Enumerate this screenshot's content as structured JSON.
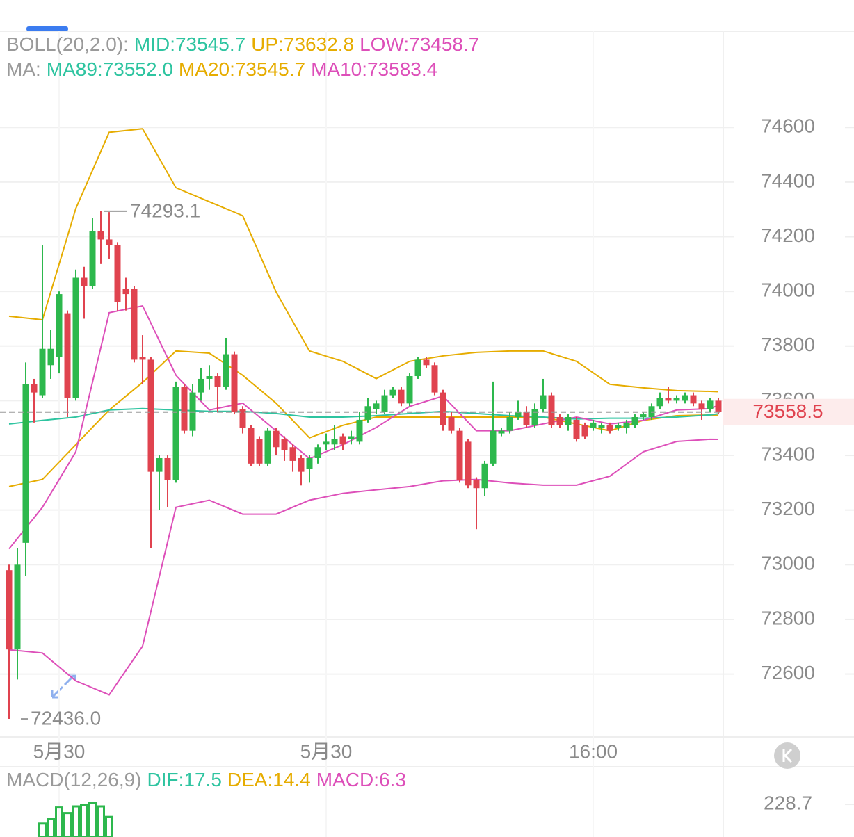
{
  "chart_data": [
    {
      "type": "candlestick",
      "legend_rows": [
        [
          {
            "text": "BOLL(20,2.0):",
            "color": "#9a9a9a"
          },
          {
            "text": "MID:73545.7",
            "color": "#2ec4a0"
          },
          {
            "text": "UP:73632.8",
            "color": "#e6ac00"
          },
          {
            "text": "LOW:73458.7",
            "color": "#dd4fb9"
          }
        ],
        [
          {
            "text": "MA:",
            "color": "#9a9a9a"
          },
          {
            "text": "MA89:73552.0",
            "color": "#2ec4a0"
          },
          {
            "text": "MA20:73545.7",
            "color": "#e6ac00"
          },
          {
            "text": "MA10:73583.4",
            "color": "#dd4fb9"
          }
        ]
      ],
      "categories": [
        null,
        null,
        null,
        null,
        null,
        null,
        "5月30",
        null,
        null,
        null,
        null,
        null,
        null,
        null,
        null,
        null,
        null,
        null,
        null,
        null,
        null,
        null,
        null,
        null,
        null,
        null,
        null,
        null,
        null,
        null,
        null,
        null,
        null,
        null,
        null,
        null,
        null,
        null,
        "5月30",
        null,
        null,
        null,
        null,
        null,
        null,
        null,
        null,
        null,
        null,
        null,
        null,
        null,
        null,
        null,
        null,
        null,
        null,
        null,
        null,
        null,
        null,
        null,
        null,
        null,
        null,
        null,
        null,
        null,
        null,
        null,
        "16:00",
        null,
        null,
        null,
        null,
        null,
        null,
        null,
        null,
        null,
        null,
        null,
        null,
        null,
        null,
        null
      ],
      "open": [
        72980,
        72690,
        73080,
        73660,
        73620,
        73730,
        73760,
        73920,
        73610,
        74050,
        74020,
        74220,
        74190,
        74170,
        74010,
        74010,
        73760,
        73750,
        73340,
        73390,
        73310,
        73650,
        73490,
        73630,
        73680,
        73690,
        73650,
        73770,
        73570,
        73500,
        73460,
        73370,
        73490,
        73460,
        73430,
        73390,
        73350,
        73390,
        73440,
        73440,
        73470,
        73460,
        73450,
        73530,
        73570,
        73560,
        73620,
        73640,
        73590,
        73690,
        73750,
        73730,
        73630,
        73540,
        73490,
        73450,
        73310,
        73280,
        73370,
        73480,
        73490,
        73540,
        73560,
        73510,
        73570,
        73620,
        73540,
        73510,
        73530,
        73510,
        73500,
        73500,
        73510,
        73500,
        73500,
        73510,
        73540,
        73540,
        73580,
        73610,
        73600,
        73600,
        73620,
        73590,
        73570,
        73600
      ],
      "high": [
        73000,
        73060,
        73740,
        73680,
        74170,
        73860,
        74000,
        73930,
        74080,
        74090,
        74270,
        74293.1,
        74290,
        74180,
        74050,
        74020,
        73840,
        73760,
        73400,
        73400,
        73670,
        73660,
        73660,
        73720,
        73730,
        73700,
        73830,
        73780,
        73580,
        73510,
        73470,
        73500,
        73500,
        73470,
        73440,
        73400,
        73400,
        73440,
        73480,
        73510,
        73480,
        73490,
        73560,
        73610,
        73600,
        73640,
        73650,
        73650,
        73700,
        73760,
        73760,
        73740,
        73640,
        73560,
        73500,
        73460,
        73320,
        73380,
        73670,
        73500,
        73560,
        73600,
        73580,
        73590,
        73680,
        73630,
        73550,
        73550,
        73540,
        73520,
        73530,
        73520,
        73520,
        73520,
        73530,
        73550,
        73560,
        73590,
        73630,
        73650,
        73620,
        73630,
        73630,
        73600,
        73610,
        73610
      ],
      "low": [
        72436,
        72580,
        72960,
        73520,
        73610,
        73680,
        73700,
        73540,
        73600,
        73900,
        74010,
        74100,
        74120,
        73930,
        73930,
        73740,
        73660,
        73060,
        73200,
        73210,
        73300,
        73480,
        73470,
        73600,
        73640,
        73560,
        73640,
        73550,
        73480,
        73360,
        73360,
        73360,
        73400,
        73380,
        73340,
        73290,
        73300,
        73370,
        73420,
        73420,
        73420,
        73440,
        73440,
        73520,
        73550,
        73550,
        73610,
        73580,
        73580,
        73680,
        73720,
        73620,
        73490,
        73480,
        73300,
        73280,
        73130,
        73250,
        73360,
        73470,
        73480,
        73530,
        73500,
        73500,
        73560,
        73500,
        73500,
        73490,
        73450,
        73460,
        73490,
        73480,
        73480,
        73490,
        73480,
        73500,
        73530,
        73530,
        73570,
        73590,
        73590,
        73590,
        73580,
        73530,
        73560,
        73550
      ],
      "close": [
        72690,
        73000,
        73660,
        73630,
        73790,
        73790,
        73990,
        73610,
        74050,
        74020,
        74220,
        74190,
        74170,
        73960,
        73990,
        73750,
        73750,
        73340,
        73390,
        73310,
        73650,
        73490,
        73630,
        73680,
        73690,
        73650,
        73770,
        73560,
        73500,
        73370,
        73370,
        73490,
        73430,
        73420,
        73380,
        73340,
        73390,
        73430,
        73450,
        73460,
        73440,
        73470,
        73530,
        73580,
        73590,
        73620,
        73640,
        73590,
        73690,
        73750,
        73730,
        73630,
        73510,
        73490,
        73310,
        73290,
        73280,
        73370,
        73490,
        73490,
        73540,
        73560,
        73510,
        73570,
        73620,
        73510,
        73510,
        73540,
        73460,
        73470,
        73520,
        73510,
        73490,
        73510,
        73520,
        73540,
        73550,
        73580,
        73610,
        73600,
        73610,
        73620,
        73590,
        73570,
        73600,
        73558.5
      ],
      "low_value_label": "72436.0",
      "up_color": "#2db84d",
      "down_color": "#e0434f",
      "series": [
        {
          "x": [
            0,
            4,
            8,
            12,
            16,
            20,
            24,
            28,
            32,
            36,
            40,
            44,
            48,
            52,
            56,
            60,
            64,
            68,
            72,
            76,
            80,
            84,
            85
          ],
          "color": "#e6ac00",
          "values": [
            73909,
            73896,
            74303,
            74582,
            74595,
            74379,
            74328,
            74277,
            73998,
            73782,
            73744,
            73681,
            73744,
            73764,
            73777,
            73782,
            73782,
            73744,
            73660,
            73647,
            73637,
            73634,
            73632.8
          ]
        },
        {
          "x": [
            0,
            4,
            8,
            12,
            16,
            20,
            24,
            28,
            32,
            36,
            40,
            44,
            48,
            52,
            56,
            60,
            64,
            68,
            72,
            76,
            80,
            84,
            85
          ],
          "color": "#dd4fb9",
          "values": [
            72689,
            72677,
            72575,
            72524,
            72702,
            73210,
            73236,
            73185,
            73185,
            73236,
            73261,
            73274,
            73286,
            73307,
            73312,
            73299,
            73291,
            73291,
            73324,
            73413,
            73451,
            73459,
            73458.7
          ]
        },
        {
          "x": [
            0,
            4,
            8,
            12,
            16,
            20,
            24,
            28,
            32,
            36,
            40,
            44,
            48,
            52,
            56,
            60,
            64,
            68,
            72,
            76,
            80,
            84,
            85
          ],
          "color": "#e6ac00",
          "values": [
            73286,
            73312,
            73439,
            73566,
            73667,
            73782,
            73774,
            73693,
            73591,
            73464,
            73510,
            73540,
            73540,
            73540,
            73540,
            73540,
            73540,
            73515,
            73490,
            73528,
            73545,
            73548,
            73545.7
          ]
        },
        {
          "x": [
            0,
            4,
            8,
            12,
            16,
            20,
            24,
            28,
            32,
            36,
            40,
            44,
            48,
            52,
            56,
            60,
            64,
            68,
            72,
            76,
            80,
            84,
            85
          ],
          "color": "#2ec4a0",
          "values": [
            73515,
            73528,
            73540,
            73566,
            73571,
            73566,
            73561,
            73561,
            73553,
            73540,
            73540,
            73545,
            73553,
            73561,
            73553,
            73545,
            73540,
            73533,
            73536,
            73536,
            73540,
            73548,
            73552.0
          ]
        },
        {
          "x": [
            0,
            4,
            8,
            12,
            16,
            20,
            24,
            28,
            32,
            36,
            40,
            44,
            48,
            52,
            56,
            60,
            64,
            68,
            72,
            76,
            80,
            84,
            85
          ],
          "color": "#dd4fb9",
          "values": [
            73058,
            73210,
            73413,
            73922,
            73947,
            73693,
            73566,
            73591,
            73490,
            73388,
            73439,
            73502,
            73579,
            73617,
            73490,
            73490,
            73515,
            73540,
            73515,
            73528,
            73566,
            73571,
            73583.4
          ]
        }
      ],
      "ylim": [
        72370,
        74710
      ],
      "yticks": [
        72600,
        72800,
        73000,
        73200,
        73400,
        73600,
        73800,
        74000,
        74200,
        74400,
        74600
      ],
      "grid": true
    },
    {
      "type": "bar",
      "legend": [
        {
          "text": "MACD(12,26,9)",
          "color": "#9a9a9a"
        },
        {
          "text": "DIF:17.5",
          "color": "#2ec4a0"
        },
        {
          "text": "DEA:14.4",
          "color": "#e6ac00"
        },
        {
          "text": "MACD:6.3",
          "color": "#dd4fb9"
        }
      ],
      "x": [
        4,
        5,
        6,
        7,
        8,
        9,
        10,
        11,
        12
      ],
      "values": [
        194,
        203,
        223,
        213,
        225,
        228,
        231,
        225,
        206
      ],
      "color": "#2db84d",
      "ylim": [
        170,
        250
      ],
      "yticks": [
        228.7
      ]
    }
  ]
}
